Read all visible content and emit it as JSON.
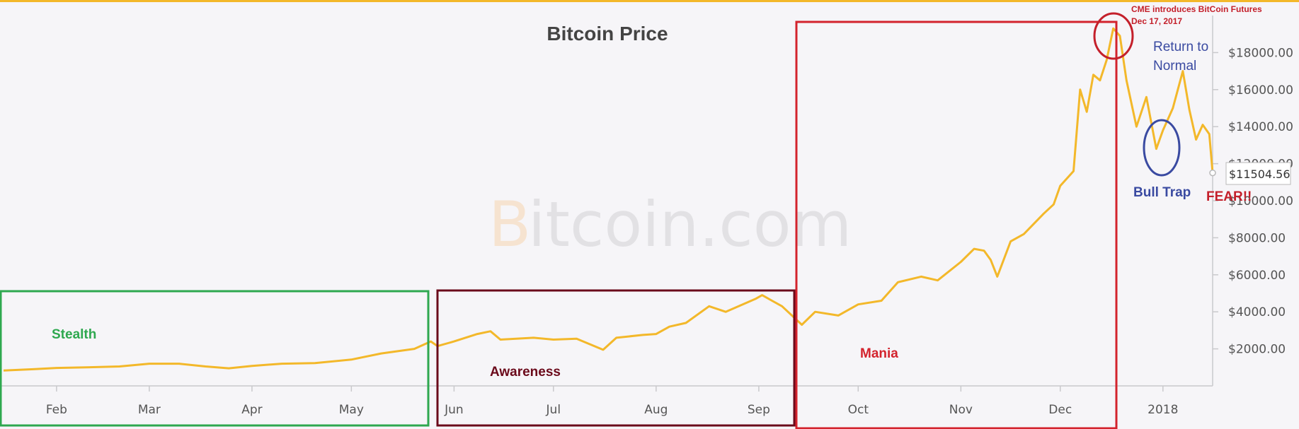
{
  "chart_data": {
    "type": "line",
    "title": "Bitcoin Price",
    "watermark": "Bitcoin.com",
    "line_color": "#f3b82a",
    "x_tick_labels": [
      "Feb",
      "Mar",
      "Apr",
      "May",
      "Jun",
      "Jul",
      "Aug",
      "Sep",
      "Oct",
      "Nov",
      "Dec",
      "2018"
    ],
    "x_tick_dates": [
      "2017-02-01",
      "2017-03-01",
      "2017-04-01",
      "2017-05-01",
      "2017-06-01",
      "2017-07-01",
      "2017-08-01",
      "2017-09-01",
      "2017-10-01",
      "2017-11-01",
      "2017-12-01",
      "2018-01-01"
    ],
    "xlim": [
      "2017-01-16",
      "2018-01-16"
    ],
    "y_tick_labels": [
      "$2000.00",
      "$4000.00",
      "$6000.00",
      "$8000.00",
      "$10000.00",
      "$12000.00",
      "$14000.00",
      "$16000.00",
      "$18000.00"
    ],
    "y_ticks": [
      2000,
      4000,
      6000,
      8000,
      10000,
      12000,
      14000,
      16000,
      18000
    ],
    "ylim": [
      0,
      20000
    ],
    "last_value_label": "$11504.56",
    "series": [
      {
        "points": [
          [
            "2017-01-16",
            830
          ],
          [
            "2017-01-25",
            900
          ],
          [
            "2017-02-01",
            970
          ],
          [
            "2017-02-10",
            1000
          ],
          [
            "2017-02-20",
            1050
          ],
          [
            "2017-03-01",
            1200
          ],
          [
            "2017-03-10",
            1200
          ],
          [
            "2017-03-18",
            1050
          ],
          [
            "2017-03-25",
            950
          ],
          [
            "2017-04-01",
            1080
          ],
          [
            "2017-04-10",
            1200
          ],
          [
            "2017-04-20",
            1230
          ],
          [
            "2017-05-01",
            1420
          ],
          [
            "2017-05-10",
            1750
          ],
          [
            "2017-05-20",
            2000
          ],
          [
            "2017-05-25",
            2400
          ],
          [
            "2017-05-27",
            2150
          ],
          [
            "2017-06-01",
            2400
          ],
          [
            "2017-06-08",
            2800
          ],
          [
            "2017-06-12",
            2950
          ],
          [
            "2017-06-15",
            2500
          ],
          [
            "2017-06-25",
            2600
          ],
          [
            "2017-07-01",
            2500
          ],
          [
            "2017-07-08",
            2550
          ],
          [
            "2017-07-16",
            1950
          ],
          [
            "2017-07-20",
            2600
          ],
          [
            "2017-07-28",
            2750
          ],
          [
            "2017-08-01",
            2800
          ],
          [
            "2017-08-05",
            3200
          ],
          [
            "2017-08-10",
            3400
          ],
          [
            "2017-08-17",
            4300
          ],
          [
            "2017-08-22",
            4000
          ],
          [
            "2017-08-31",
            4700
          ],
          [
            "2017-09-02",
            4900
          ],
          [
            "2017-09-05",
            4600
          ],
          [
            "2017-09-08",
            4300
          ],
          [
            "2017-09-14",
            3300
          ],
          [
            "2017-09-18",
            4000
          ],
          [
            "2017-09-25",
            3800
          ],
          [
            "2017-10-01",
            4400
          ],
          [
            "2017-10-08",
            4600
          ],
          [
            "2017-10-13",
            5600
          ],
          [
            "2017-10-20",
            5900
          ],
          [
            "2017-10-25",
            5700
          ],
          [
            "2017-11-01",
            6700
          ],
          [
            "2017-11-05",
            7400
          ],
          [
            "2017-11-08",
            7300
          ],
          [
            "2017-11-10",
            6800
          ],
          [
            "2017-11-12",
            5900
          ],
          [
            "2017-11-16",
            7800
          ],
          [
            "2017-11-20",
            8200
          ],
          [
            "2017-11-26",
            9300
          ],
          [
            "2017-11-29",
            9800
          ],
          [
            "2017-12-01",
            10800
          ],
          [
            "2017-12-05",
            11600
          ],
          [
            "2017-12-07",
            16000
          ],
          [
            "2017-12-09",
            14800
          ],
          [
            "2017-12-11",
            16800
          ],
          [
            "2017-12-13",
            16500
          ],
          [
            "2017-12-15",
            17600
          ],
          [
            "2017-12-17",
            19300
          ],
          [
            "2017-12-19",
            18900
          ],
          [
            "2017-12-21",
            16500
          ],
          [
            "2017-12-24",
            14000
          ],
          [
            "2017-12-27",
            15600
          ],
          [
            "2017-12-30",
            12800
          ],
          [
            "2018-01-01",
            13800
          ],
          [
            "2018-01-04",
            15000
          ],
          [
            "2018-01-07",
            17000
          ],
          [
            "2018-01-09",
            14900
          ],
          [
            "2018-01-11",
            13300
          ],
          [
            "2018-01-13",
            14100
          ],
          [
            "2018-01-15",
            13600
          ],
          [
            "2018-01-16",
            11504.56
          ]
        ]
      }
    ],
    "annotations": {
      "stealth": {
        "label": "Stealth",
        "color": "#2ea84f"
      },
      "awareness": {
        "label": "Awareness",
        "color": "#6b0a1b"
      },
      "mania": {
        "label": "Mania",
        "color": "#d3232d"
      },
      "cme_note_line1": "CME introduces BitCoin Futures",
      "cme_note_line2": "Dec 17, 2017",
      "return_line1": "Return to",
      "return_line2": "Normal",
      "bull_trap": "Bull Trap",
      "fear": "FEAR!!",
      "blue_color": "#3a4aa1",
      "red_color": "#c4202b"
    }
  }
}
